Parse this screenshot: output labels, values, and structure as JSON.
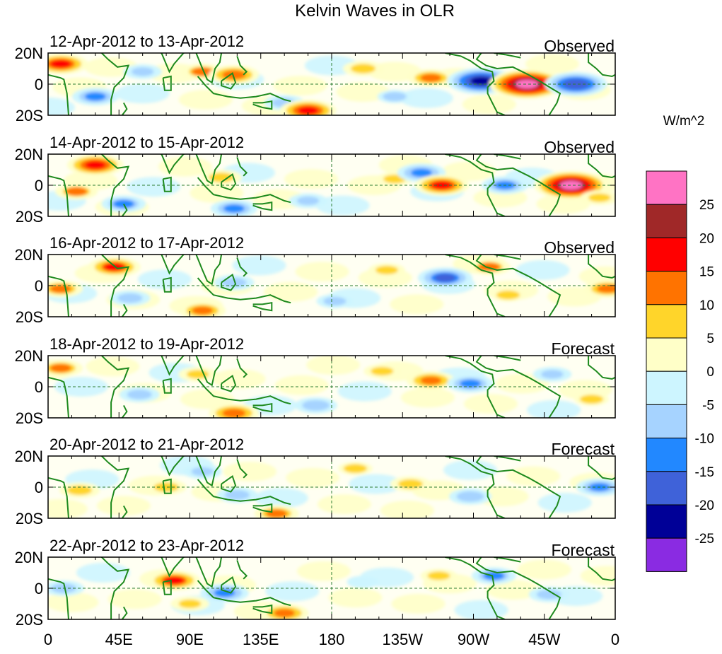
{
  "chart_data": {
    "type": "heatmap",
    "title": "Kelvin Waves in OLR",
    "units": "W/m^2",
    "x_ticks": [
      "0",
      "45E",
      "90E",
      "135E",
      "180",
      "135W",
      "90W",
      "45W",
      "0"
    ],
    "y_ticks": [
      "20N",
      "0",
      "20S"
    ],
    "xlim_deg": [
      0,
      360
    ],
    "ylim_deg": [
      -20,
      20
    ],
    "colorbar": {
      "labels": [
        "25",
        "20",
        "15",
        "10",
        "5",
        "0",
        "-5",
        "-10",
        "-15",
        "-20",
        "-25"
      ],
      "colors": [
        "#ff73c4",
        "#a02828",
        "#ff0000",
        "#ff7300",
        "#ffd52a",
        "#ffffc8",
        "#cdf5ff",
        "#a6d3ff",
        "#2288ff",
        "#3f62d9",
        "#000097",
        "#8a2be2"
      ]
    },
    "panels": [
      {
        "dates": "12-Apr-2012 to 13-Apr-2012",
        "kind": "Observed",
        "anomalies": [
          {
            "lon": 8,
            "lat": 13,
            "val": 16
          },
          {
            "lon": 30,
            "lat": -8,
            "val": -12
          },
          {
            "lon": 98,
            "lat": 8,
            "val": 10
          },
          {
            "lon": 118,
            "lat": 6,
            "val": 14
          },
          {
            "lon": 150,
            "lat": -12,
            "val": -9
          },
          {
            "lon": 165,
            "lat": -17,
            "val": 17
          },
          {
            "lon": 200,
            "lat": 10,
            "val": 9
          },
          {
            "lon": 243,
            "lat": 4,
            "val": 12
          },
          {
            "lon": 275,
            "lat": 2,
            "val": -23
          },
          {
            "lon": 304,
            "lat": 0,
            "val": 27
          },
          {
            "lon": 335,
            "lat": 0,
            "val": -20
          },
          {
            "lon": 220,
            "lat": -8,
            "val": -6
          },
          {
            "lon": 60,
            "lat": 8,
            "val": -8
          }
        ]
      },
      {
        "dates": "14-Apr-2012 to 15-Apr-2012",
        "kind": "Observed",
        "anomalies": [
          {
            "lon": 30,
            "lat": 13,
            "val": 17
          },
          {
            "lon": 18,
            "lat": -4,
            "val": 10
          },
          {
            "lon": 48,
            "lat": -12,
            "val": -11
          },
          {
            "lon": 110,
            "lat": 5,
            "val": 9
          },
          {
            "lon": 118,
            "lat": -15,
            "val": -12
          },
          {
            "lon": 220,
            "lat": 4,
            "val": 7
          },
          {
            "lon": 237,
            "lat": 8,
            "val": -13
          },
          {
            "lon": 250,
            "lat": 0,
            "val": 16
          },
          {
            "lon": 290,
            "lat": 0,
            "val": -12
          },
          {
            "lon": 332,
            "lat": 0,
            "val": 26
          },
          {
            "lon": 165,
            "lat": -10,
            "val": -8
          },
          {
            "lon": 350,
            "lat": -8,
            "val": 8
          }
        ]
      },
      {
        "dates": "16-Apr-2012 to 17-Apr-2012",
        "kind": "Observed",
        "anomalies": [
          {
            "lon": 42,
            "lat": 12,
            "val": 15
          },
          {
            "lon": 8,
            "lat": -2,
            "val": 11
          },
          {
            "lon": 52,
            "lat": -8,
            "val": -9
          },
          {
            "lon": 98,
            "lat": -16,
            "val": 12
          },
          {
            "lon": 118,
            "lat": 2,
            "val": -9
          },
          {
            "lon": 182,
            "lat": -10,
            "val": -7
          },
          {
            "lon": 215,
            "lat": 10,
            "val": 7
          },
          {
            "lon": 252,
            "lat": 5,
            "val": -16
          },
          {
            "lon": 280,
            "lat": 12,
            "val": 10
          },
          {
            "lon": 355,
            "lat": -2,
            "val": 12
          },
          {
            "lon": 292,
            "lat": -6,
            "val": 6
          }
        ]
      },
      {
        "dates": "18-Apr-2012 to 19-Apr-2012",
        "kind": "Forecast",
        "anomalies": [
          {
            "lon": 8,
            "lat": 12,
            "val": 11
          },
          {
            "lon": 58,
            "lat": -5,
            "val": -9
          },
          {
            "lon": 95,
            "lat": 8,
            "val": 8
          },
          {
            "lon": 118,
            "lat": -17,
            "val": 14
          },
          {
            "lon": 170,
            "lat": -12,
            "val": -10
          },
          {
            "lon": 212,
            "lat": 10,
            "val": 7
          },
          {
            "lon": 243,
            "lat": 4,
            "val": 13
          },
          {
            "lon": 268,
            "lat": 2,
            "val": -12
          },
          {
            "lon": 320,
            "lat": 8,
            "val": -8
          },
          {
            "lon": 345,
            "lat": -8,
            "val": 6
          }
        ]
      },
      {
        "dates": "20-Apr-2012 to 21-Apr-2012",
        "kind": "Forecast",
        "anomalies": [
          {
            "lon": 20,
            "lat": -2,
            "val": 9
          },
          {
            "lon": 75,
            "lat": 0,
            "val": 9
          },
          {
            "lon": 98,
            "lat": 10,
            "val": -8
          },
          {
            "lon": 120,
            "lat": -5,
            "val": -9
          },
          {
            "lon": 145,
            "lat": -17,
            "val": 11
          },
          {
            "lon": 230,
            "lat": 2,
            "val": 9
          },
          {
            "lon": 268,
            "lat": -6,
            "val": -10
          },
          {
            "lon": 350,
            "lat": 0,
            "val": -12
          },
          {
            "lon": 195,
            "lat": 12,
            "val": 6
          }
        ]
      },
      {
        "dates": "22-Apr-2012 to 23-Apr-2012",
        "kind": "Forecast",
        "anomalies": [
          {
            "lon": 10,
            "lat": 0,
            "val": -9
          },
          {
            "lon": 80,
            "lat": 5,
            "val": 15
          },
          {
            "lon": 90,
            "lat": -10,
            "val": 8
          },
          {
            "lon": 112,
            "lat": -3,
            "val": -13
          },
          {
            "lon": 150,
            "lat": -16,
            "val": 13
          },
          {
            "lon": 200,
            "lat": 4,
            "val": -5
          },
          {
            "lon": 248,
            "lat": 8,
            "val": 7
          },
          {
            "lon": 283,
            "lat": 8,
            "val": -11
          },
          {
            "lon": 318,
            "lat": -4,
            "val": -9
          }
        ]
      }
    ]
  }
}
